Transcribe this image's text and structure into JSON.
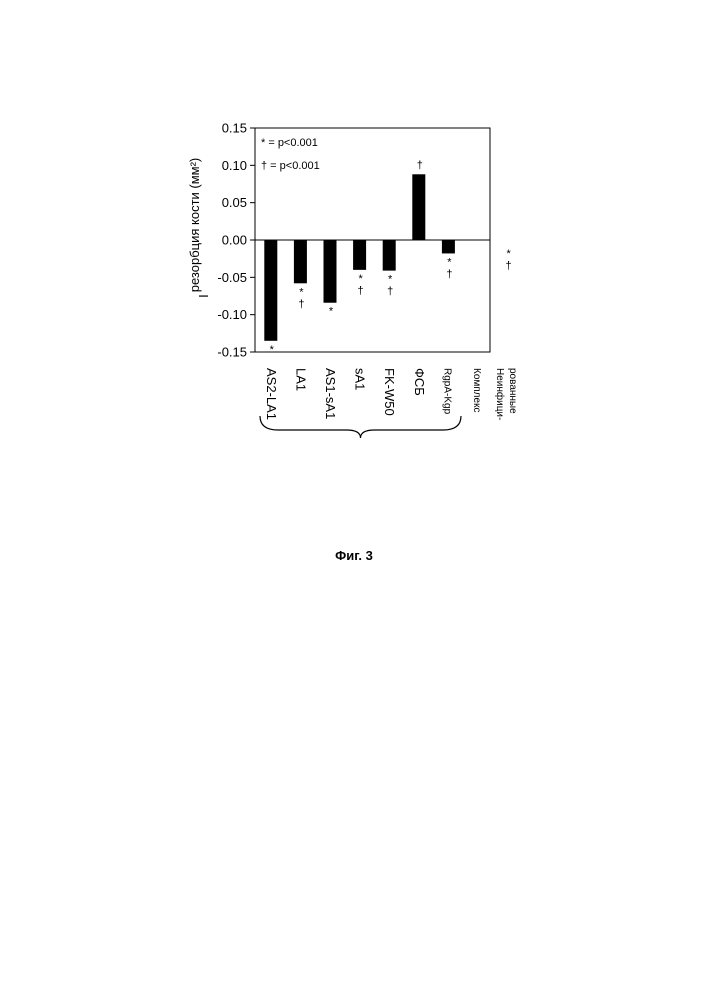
{
  "chart_data": {
    "type": "bar",
    "ylabel": "резорбция кости (мм²)",
    "ylabel_prefix": "I",
    "ylim": [
      -0.15,
      0.15
    ],
    "yticks": [
      "0.15",
      "0.10",
      "0.05",
      "0.00",
      "-0.05",
      "-0.10",
      "-0.15"
    ],
    "ytick_values": [
      0.15,
      0.1,
      0.05,
      0.0,
      -0.05,
      -0.1,
      -0.15
    ],
    "categories": [
      "AS2-LA1",
      "LA1",
      "AS1-sA1",
      "sA1",
      "FK-W50",
      "ФСБ",
      "RgpA-Kgp",
      "Комплекс",
      "Неинфици-\nрованные"
    ],
    "values": [
      -0.135,
      -0.058,
      -0.084,
      -0.04,
      -0.041,
      0.088,
      -0.018,
      null,
      0.0
    ],
    "markers": [
      "*",
      "*\n†",
      "*",
      "*\n†",
      "*\n†",
      "†",
      "*\n†",
      "",
      "*\n†"
    ],
    "legend": [
      "* = p<0.001",
      "† = p<0.001"
    ],
    "grid": false
  },
  "figure_caption": "Фиг. 3"
}
